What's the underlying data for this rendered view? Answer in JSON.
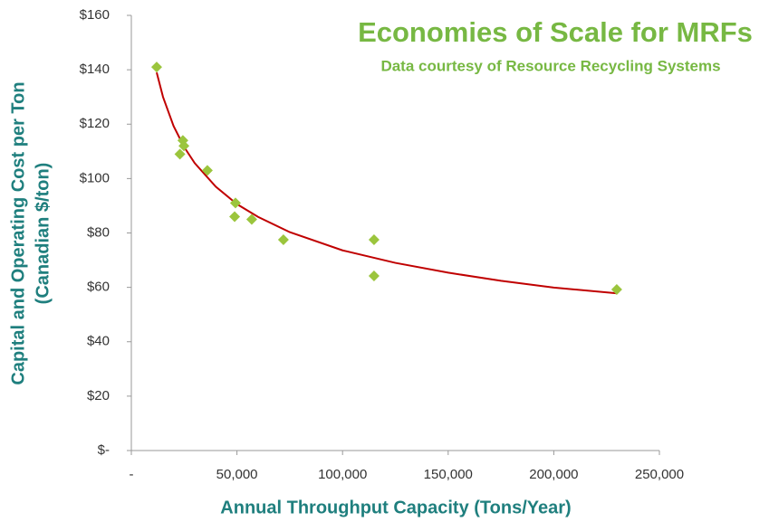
{
  "chart_data": {
    "type": "scatter",
    "title": "Economies of Scale for MRFs",
    "subtitle": "Data courtesy of Resource Recycling Systems",
    "xlabel": "Annual Throughput Capacity (Tons/Year)",
    "ylabel": [
      "Capital and Operating Cost per Ton",
      "(Canadian $/ton)"
    ],
    "x": [
      12000,
      23000,
      24400,
      24900,
      36000,
      49300,
      48900,
      57000,
      72000,
      114900,
      114900,
      229800
    ],
    "values": [
      141,
      109,
      114,
      112,
      103,
      91,
      86,
      85,
      77.5,
      77.5,
      64.2,
      59.2
    ],
    "color": "#9bc53d",
    "trendline": {
      "color": "#c00000",
      "x": [
        12000,
        15000,
        20000,
        25000,
        30000,
        40000,
        50000,
        60000,
        75000,
        100000,
        125000,
        150000,
        175000,
        200000,
        230000
      ],
      "values": [
        139,
        130,
        119.3,
        111.6,
        105.7,
        97,
        90.6,
        85.9,
        80.3,
        73.6,
        69,
        65.4,
        62.4,
        59.9,
        57.8
      ]
    },
    "xlim": [
      0,
      250000
    ],
    "xticks": [
      {
        "value": 0,
        "label": "-"
      },
      {
        "value": 50000,
        "label": "50,000"
      },
      {
        "value": 100000,
        "label": "100,000"
      },
      {
        "value": 150000,
        "label": "150,000"
      },
      {
        "value": 200000,
        "label": "200,000"
      },
      {
        "value": 250000,
        "label": "250,000"
      }
    ],
    "ylim": [
      0,
      160
    ],
    "yticks": [
      {
        "value": 0,
        "label": "$-"
      },
      {
        "value": 20,
        "label": "$20"
      },
      {
        "value": 40,
        "label": "$40"
      },
      {
        "value": 60,
        "label": "$60"
      },
      {
        "value": 80,
        "label": "$80"
      },
      {
        "value": 100,
        "label": "$100"
      },
      {
        "value": 120,
        "label": "$120"
      },
      {
        "value": 140,
        "label": "$140"
      },
      {
        "value": 160,
        "label": "$160"
      }
    ]
  }
}
